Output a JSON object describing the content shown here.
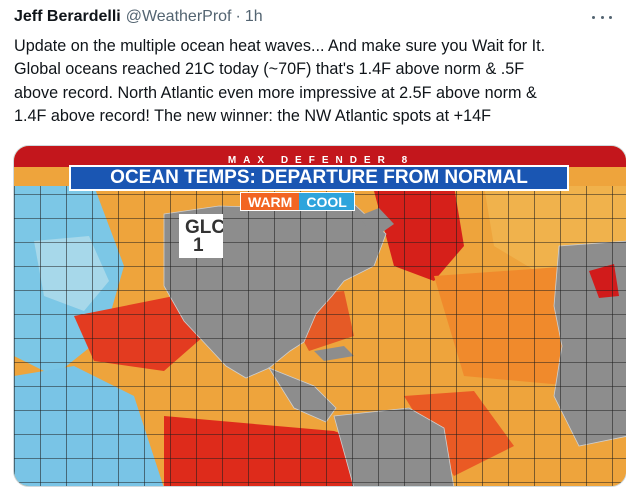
{
  "tweet": {
    "author_name": "Jeff Berardelli",
    "author_handle": "@WeatherProf",
    "separator": "·",
    "timestamp": "1h",
    "text_lines": [
      "Update on the multiple ocean heat waves... And make sure you Wait for It.",
      "Global oceans reached 21C today (~70F) that's 1.4F above norm & .5F",
      "above record. North Atlantic even more impressive at 2.5F above norm &",
      "1.4F above record! The new winner: the NW Atlantic spots at +14F"
    ],
    "more_icon": "more-dots-icon"
  },
  "media": {
    "brand": "MAX DEFENDER 8",
    "title": "OCEAN TEMPS: DEPARTURE FROM NORMAL",
    "legend_warm": "WARM",
    "legend_cool": "COOL",
    "glo_label": "GLC",
    "glo_value": "1",
    "colors": {
      "banner_red": "#c3161c",
      "title_blue": "#1a56b3",
      "warm": "#f26522",
      "cool": "#2ea4dc",
      "land": "#8d8d8d"
    }
  }
}
